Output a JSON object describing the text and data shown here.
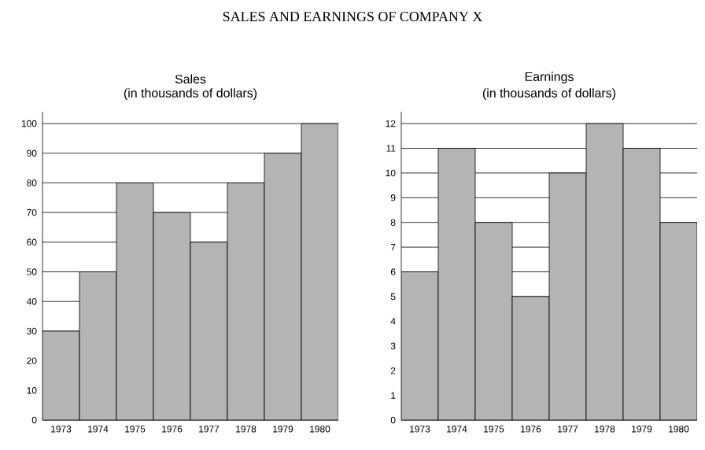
{
  "chart_data": [
    {
      "type": "bar",
      "annotations": [
        "SALES AND EARNINGS OF COMPANY X"
      ],
      "title": "Sales",
      "subtitle": "(in thousands of dollars)",
      "categories": [
        "1973",
        "1974",
        "1975",
        "1976",
        "1977",
        "1978",
        "1979",
        "1980"
      ],
      "values": [
        30,
        50,
        80,
        70,
        60,
        80,
        90,
        100
      ],
      "color": "#b4b4b4",
      "ylim": [
        0,
        100
      ],
      "yticks": [
        0,
        10,
        20,
        30,
        40,
        50,
        60,
        70,
        80,
        90,
        100
      ],
      "grid": "y"
    },
    {
      "type": "bar",
      "title": "Earnings",
      "subtitle": "(in thousands of dollars)",
      "categories": [
        "1973",
        "1974",
        "1975",
        "1976",
        "1977",
        "1978",
        "1979",
        "1980"
      ],
      "values": [
        6,
        11,
        8,
        5,
        10,
        12,
        11,
        8
      ],
      "color": "#b4b4b4",
      "ylim": [
        0,
        12
      ],
      "yticks": [
        0,
        1,
        2,
        3,
        4,
        5,
        6,
        7,
        8,
        9,
        10,
        11,
        12
      ],
      "grid": "y"
    }
  ]
}
